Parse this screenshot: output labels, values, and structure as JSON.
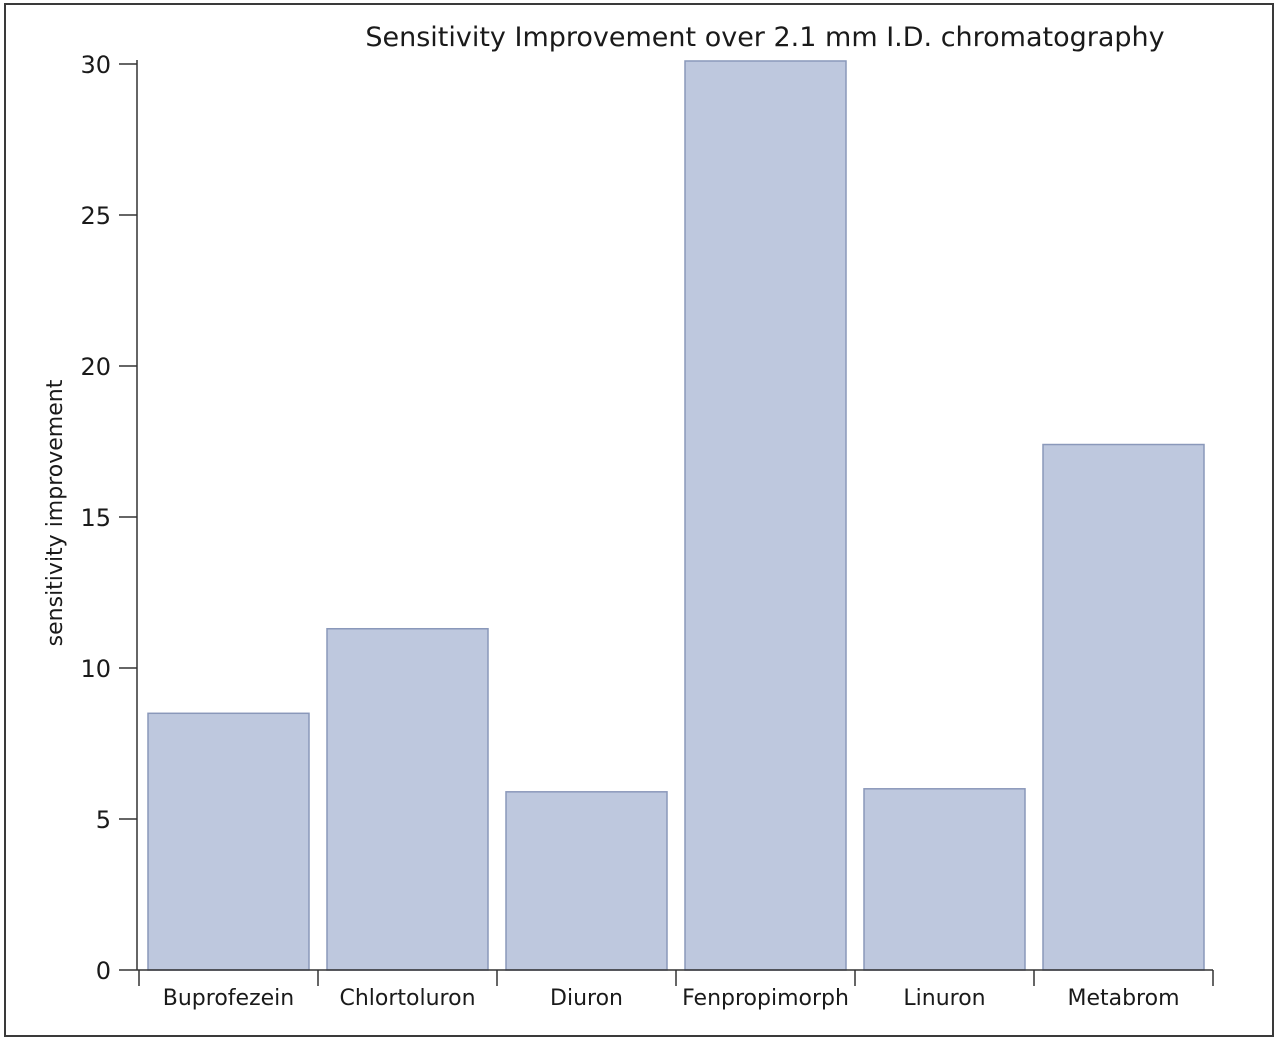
{
  "chart_data": {
    "type": "bar",
    "title": "Sensitivity Improvement over 2.1 mm I.D. chromatography",
    "xlabel": "",
    "ylabel": "sensitivity improvement",
    "categories": [
      "Buprofezein",
      "Chlortoluron",
      "Diuron",
      "Fenpropimorph",
      "Linuron",
      "Metabrom"
    ],
    "values": [
      8.5,
      11.3,
      5.9,
      30.1,
      6.0,
      17.4
    ],
    "ylim": [
      0,
      30
    ],
    "yticks": [
      0,
      5,
      10,
      15,
      20,
      25,
      30
    ],
    "grid": false,
    "legend": "none",
    "bar_color": "#bec8de",
    "bar_edge_color": "#8a98ba"
  }
}
